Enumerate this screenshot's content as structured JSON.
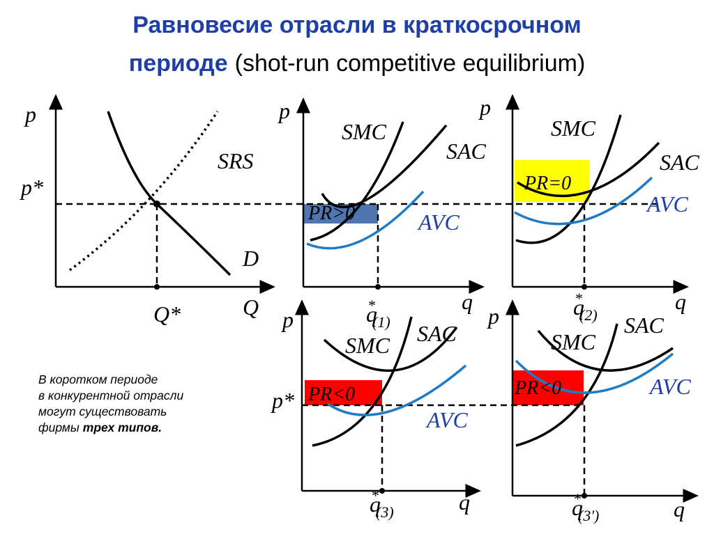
{
  "title": {
    "line1": "Равновесие отрасли в краткосрочном",
    "line2_bold": "периоде",
    "line2_rest": "(shot-run competitive equilibrium)"
  },
  "panels": [
    {
      "y_axis": "p",
      "price": "p*",
      "supply": "SRS",
      "demand": "D",
      "quantity": "Q*",
      "x_axis": "Q"
    },
    {
      "y_axis": "p",
      "smc": "SMC",
      "sac": "SAC",
      "profit": "PR>0",
      "avc": "AVC",
      "quantity": {
        "base": "q",
        "star": "*",
        "sub": "(1)"
      },
      "x_axis": "q"
    },
    {
      "y_axis": "p",
      "smc": "SMC",
      "sac": "SAC",
      "profit": "PR=0",
      "avc": "AVC",
      "quantity": {
        "base": "q",
        "star": "*",
        "sub": "(2)"
      },
      "x_axis": "q"
    },
    {
      "y_axis": "p",
      "price": "p*",
      "smc": "SMC",
      "sac": "SAC",
      "profit": "PR<0",
      "avc": "AVC",
      "quantity": {
        "base": "q",
        "star": "*",
        "sub": "(3)"
      },
      "x_axis": "q"
    },
    {
      "y_axis": "p",
      "smc": "SMC",
      "sac": "SAC",
      "profit": "PR<0",
      "avc": "AVC",
      "quantity": {
        "base": "q",
        "star": "*",
        "sub": "(3')"
      },
      "x_axis": "q"
    }
  ],
  "note": {
    "lines": [
      "В коротком периоде",
      "в конкурентной отрасли",
      "могут существовать"
    ],
    "last_plain": "фирмы",
    "last_bold": "трех типов."
  }
}
